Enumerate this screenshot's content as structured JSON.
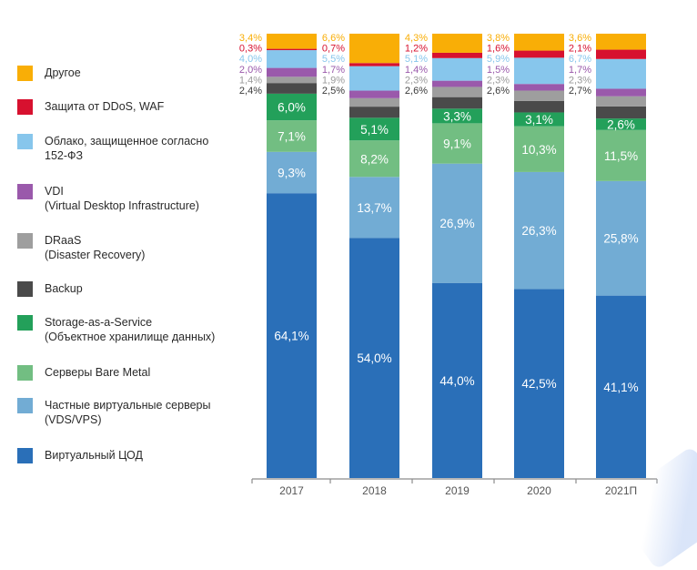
{
  "chart_data": {
    "type": "bar",
    "stacked": true,
    "title": "",
    "xlabel": "",
    "ylabel": "",
    "ylim": [
      0,
      100
    ],
    "unit": "%",
    "grid": false,
    "legend_position": "left",
    "categories": [
      "2017",
      "2018",
      "2019",
      "2020",
      "2021П"
    ],
    "series": [
      {
        "name": "Виртуальный ЦОД",
        "color": "#2a6fb8",
        "label_inside": true,
        "label_color": "#ffffff",
        "values": [
          64.1,
          54.0,
          44.0,
          42.5,
          41.1
        ],
        "labels": [
          "64,1%",
          "54,0%",
          "44,0%",
          "42,5%",
          "41,1%"
        ]
      },
      {
        "name": "Частные виртуальные серверы (VDS/VPS)",
        "color": "#72acd4",
        "label_inside": true,
        "label_color": "#ffffff",
        "values": [
          9.3,
          13.7,
          26.9,
          26.3,
          25.8
        ],
        "labels": [
          "9,3%",
          "13,7%",
          "26,9%",
          "26,3%",
          "25,8%"
        ]
      },
      {
        "name": "Серверы Bare Metal",
        "color": "#72be82",
        "label_inside": true,
        "label_color": "#ffffff",
        "values": [
          7.1,
          8.2,
          9.1,
          10.3,
          11.5
        ],
        "labels": [
          "7,1%",
          "8,2%",
          "9,1%",
          "10,3%",
          "11,5%"
        ]
      },
      {
        "name": "Storage-as-a-Service (Объектное хранилище данных)",
        "color": "#23a05a",
        "label_inside": true,
        "label_color": "#ffffff",
        "values": [
          6.0,
          5.1,
          3.3,
          3.1,
          2.6
        ],
        "labels": [
          "6,0%",
          "5,1%",
          "3,3%",
          "3,1%",
          "2,6%"
        ]
      },
      {
        "name": "Backup",
        "color": "#4a4a4a",
        "label_inside": false,
        "label_color": "#3a3a3a",
        "values": [
          2.4,
          2.5,
          2.6,
          2.6,
          2.7
        ],
        "labels": [
          "2,4%",
          "2,5%",
          "2,6%",
          "2,6%",
          "2,7%"
        ]
      },
      {
        "name": "DRaaS (Disaster Recovery)",
        "color": "#9e9e9e",
        "label_inside": false,
        "label_color": "#9a9a9a",
        "values": [
          1.4,
          1.9,
          2.3,
          2.3,
          2.3
        ],
        "labels": [
          "1,4%",
          "1,9%",
          "2,3%",
          "2,3%",
          "2,3%"
        ]
      },
      {
        "name": "VDI (Virtual Desktop Infrastructure)",
        "color": "#9a59ab",
        "label_inside": false,
        "label_color": "#9a59ab",
        "values": [
          2.0,
          1.7,
          1.4,
          1.5,
          1.7
        ],
        "labels": [
          "2,0%",
          "1,7%",
          "1,4%",
          "1,5%",
          "1,7%"
        ]
      },
      {
        "name": "Облако, защищенное согласно 152-ФЗ",
        "color": "#87c6ec",
        "label_inside": false,
        "label_color": "#87c6ec",
        "values": [
          4.0,
          5.5,
          5.1,
          5.9,
          6.7
        ],
        "labels": [
          "4,0%",
          "5,5%",
          "5,1%",
          "5,9%",
          "6,7%"
        ]
      },
      {
        "name": "Защита от DDoS, WAF",
        "color": "#d7112f",
        "label_inside": false,
        "label_color": "#d7112f",
        "values": [
          0.3,
          0.7,
          1.2,
          1.6,
          2.1
        ],
        "labels": [
          "0,3%",
          "0,7%",
          "1,2%",
          "1,6%",
          "2,1%"
        ]
      },
      {
        "name": "Другое",
        "color": "#f9ae06",
        "label_inside": false,
        "label_color": "#f9ae06",
        "values": [
          3.4,
          6.6,
          4.3,
          3.8,
          3.6
        ],
        "labels": [
          "3,4%",
          "6,6%",
          "4,3%",
          "3,8%",
          "3,6%"
        ]
      }
    ]
  },
  "legend": [
    {
      "label": "Другое",
      "color": "#f9ae06"
    },
    {
      "label": "Защита от DDoS, WAF",
      "color": "#d7112f"
    },
    {
      "label": "Облако, защищенное согласно\n152-ФЗ",
      "color": "#87c6ec"
    },
    {
      "label": "VDI\n(Virtual Desktop Infrastructure)",
      "color": "#9a59ab"
    },
    {
      "label": "DRaaS\n(Disaster Recovery)",
      "color": "#9e9e9e"
    },
    {
      "label": "Backup",
      "color": "#4a4a4a"
    },
    {
      "label": "Storage-as-a-Service\n(Объектное хранилище данных)",
      "color": "#23a05a"
    },
    {
      "label": "Серверы Bare Metal",
      "color": "#72be82"
    },
    {
      "label": "Частные виртуальные серверы\n(VDS/VPS)",
      "color": "#72acd4"
    },
    {
      "label": "Виртуальный ЦОД",
      "color": "#2a6fb8"
    }
  ]
}
